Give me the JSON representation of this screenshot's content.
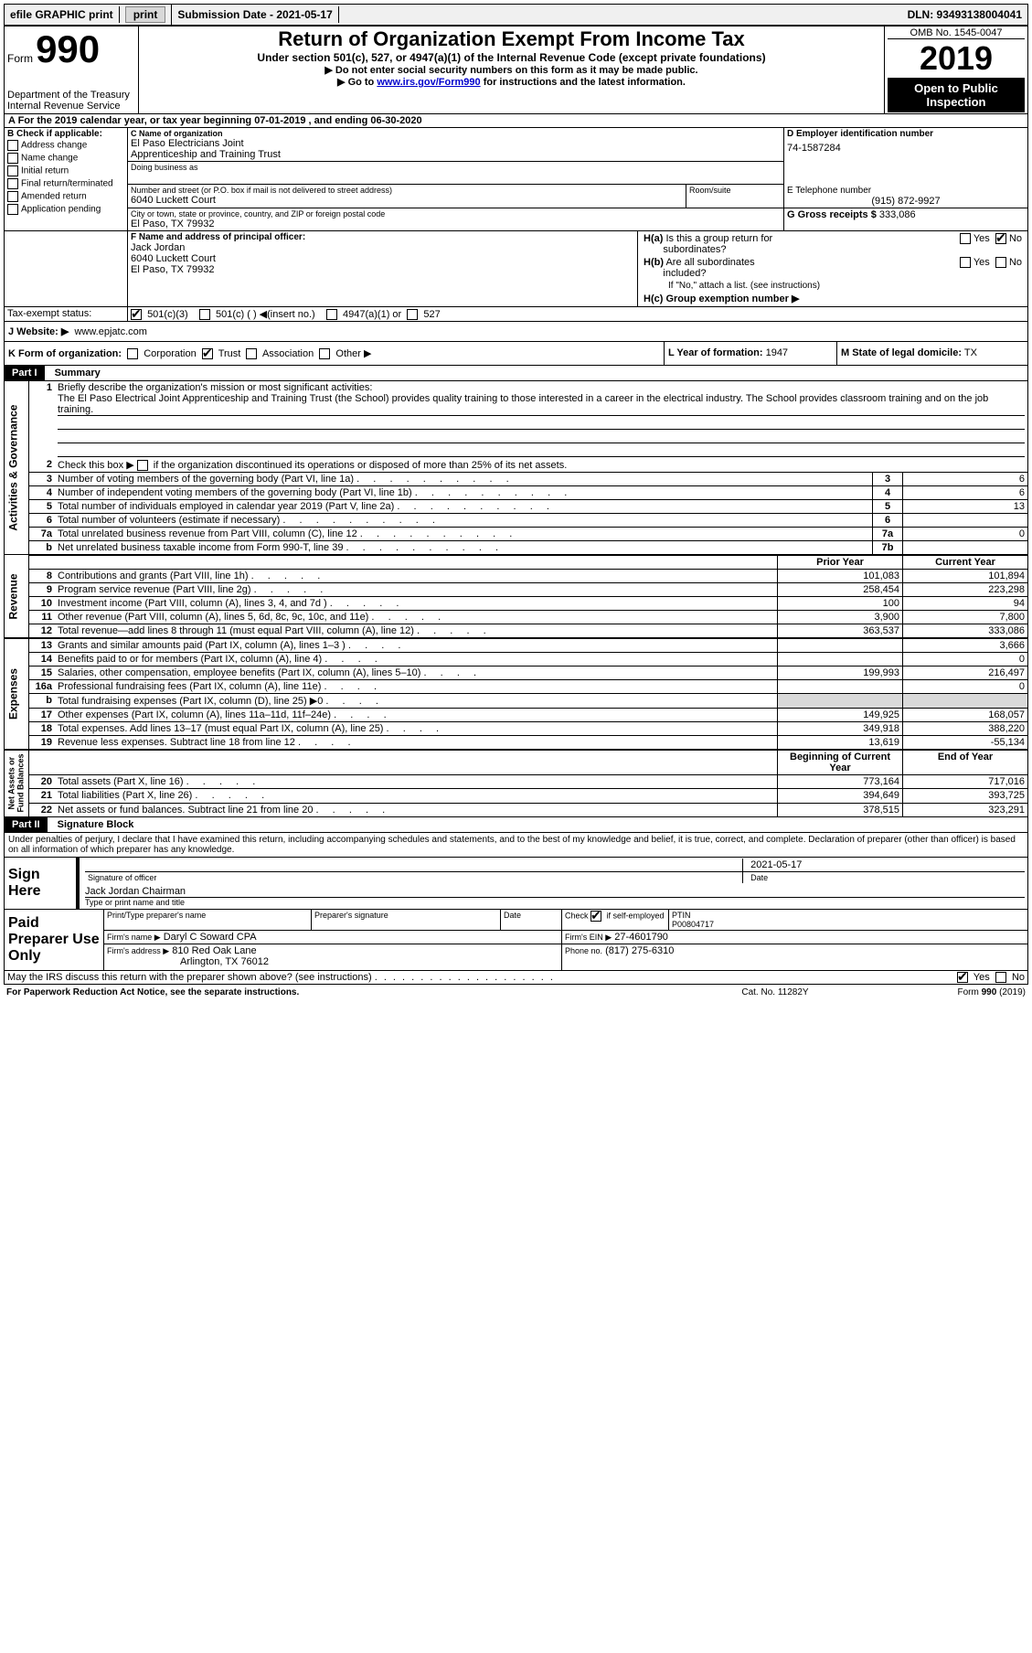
{
  "topbar": {
    "efile": "efile GRAPHIC print",
    "submission_label": "Submission Date - 2021-05-17",
    "dln": "DLN: 93493138004041"
  },
  "header": {
    "form_label": "Form",
    "form_number": "990",
    "dept": "Department of the Treasury\nInternal Revenue Service",
    "title": "Return of Organization Exempt From Income Tax",
    "subtitle": "Under section 501(c), 527, or 4947(a)(1) of the Internal Revenue Code (except private foundations)",
    "note1": "▶ Do not enter social security numbers on this form as it may be made public.",
    "note2_pre": "▶ Go to ",
    "note2_link": "www.irs.gov/Form990",
    "note2_post": " for instructions and the latest information.",
    "omb": "OMB No. 1545-0047",
    "year": "2019",
    "inspection": "Open to Public Inspection"
  },
  "section_a": {
    "line": "A For the 2019 calendar year, or tax year beginning 07-01-2019   , and ending 06-30-2020"
  },
  "b": {
    "label": "B Check if applicable:",
    "opts": [
      "Address change",
      "Name change",
      "Initial return",
      "Final return/terminated",
      "Amended return",
      "Application pending"
    ]
  },
  "c": {
    "name_label": "C Name of organization",
    "name": "El Paso Electricians Joint\nApprenticeship and Training Trust",
    "dba_label": "Doing business as",
    "addr_label": "Number and street (or P.O. box if mail is not delivered to street address)",
    "addr": "6040 Luckett Court",
    "room_label": "Room/suite",
    "city_label": "City or town, state or province, country, and ZIP or foreign postal code",
    "city": "El Paso, TX  79932"
  },
  "d": {
    "label": "D Employer identification number",
    "value": "74-1587284"
  },
  "e": {
    "label": "E Telephone number",
    "value": "(915) 872-9927"
  },
  "g": {
    "label": "G Gross receipts $",
    "value": "333,086"
  },
  "f": {
    "label": "F Name and address of principal officer:",
    "name": "Jack Jordan",
    "addr1": "6040 Luckett Court",
    "addr2": "El Paso, TX  79932"
  },
  "h": {
    "a_label": "H(a)  Is this a group return for subordinates?",
    "b_label": "H(b)  Are all subordinates included?",
    "b_note": "If \"No,\" attach a list. (see instructions)",
    "c_label": "H(c)  Group exemption number ▶",
    "yes": "Yes",
    "no": "No"
  },
  "i": {
    "label": "Tax-exempt status:",
    "o1": "501(c)(3)",
    "o2": "501(c) (  ) ◀(insert no.)",
    "o3": "4947(a)(1) or",
    "o4": "527"
  },
  "j": {
    "label": "J   Website: ▶",
    "value": "www.epjatc.com"
  },
  "k": {
    "label": "K Form of organization:",
    "o1": "Corporation",
    "o2": "Trust",
    "o3": "Association",
    "o4": "Other ▶"
  },
  "l": {
    "label": "L Year of formation:",
    "value": "1947"
  },
  "m": {
    "label": "M State of legal domicile:",
    "value": "TX"
  },
  "part1": {
    "header": "Part I",
    "title": "Summary",
    "q1": "Briefly describe the organization's mission or most significant activities:",
    "q1_text": "The El Paso Electrical Joint Apprenticeship and Training Trust (the School) provides quality training to those interested in a career in the electrical industry. The School provides classroom training and on the job training.",
    "q2": "Check this box ▶      if the organization discontinued its operations or disposed of more than 25% of its net assets.",
    "lines_gov": [
      {
        "n": "3",
        "d": "Number of voting members of the governing body (Part VI, line 1a)",
        "box": "3",
        "v": "6"
      },
      {
        "n": "4",
        "d": "Number of independent voting members of the governing body (Part VI, line 1b)",
        "box": "4",
        "v": "6"
      },
      {
        "n": "5",
        "d": "Total number of individuals employed in calendar year 2019 (Part V, line 2a)",
        "box": "5",
        "v": "13"
      },
      {
        "n": "6",
        "d": "Total number of volunteers (estimate if necessary)",
        "box": "6",
        "v": ""
      },
      {
        "n": "7a",
        "d": "Total unrelated business revenue from Part VIII, column (C), line 12",
        "box": "7a",
        "v": "0"
      },
      {
        "n": "b",
        "d": "Net unrelated business taxable income from Form 990-T, line 39",
        "box": "7b",
        "v": ""
      }
    ],
    "col_prior": "Prior Year",
    "col_current": "Current Year",
    "lines_rev": [
      {
        "n": "8",
        "d": "Contributions and grants (Part VIII, line 1h)",
        "p": "101,083",
        "c": "101,894"
      },
      {
        "n": "9",
        "d": "Program service revenue (Part VIII, line 2g)",
        "p": "258,454",
        "c": "223,298"
      },
      {
        "n": "10",
        "d": "Investment income (Part VIII, column (A), lines 3, 4, and 7d )",
        "p": "100",
        "c": "94"
      },
      {
        "n": "11",
        "d": "Other revenue (Part VIII, column (A), lines 5, 6d, 8c, 9c, 10c, and 11e)",
        "p": "3,900",
        "c": "7,800"
      },
      {
        "n": "12",
        "d": "Total revenue—add lines 8 through 11 (must equal Part VIII, column (A), line 12)",
        "p": "363,537",
        "c": "333,086"
      }
    ],
    "lines_exp": [
      {
        "n": "13",
        "d": "Grants and similar amounts paid (Part IX, column (A), lines 1–3 )",
        "p": "",
        "c": "3,666"
      },
      {
        "n": "14",
        "d": "Benefits paid to or for members (Part IX, column (A), line 4)",
        "p": "",
        "c": "0"
      },
      {
        "n": "15",
        "d": "Salaries, other compensation, employee benefits (Part IX, column (A), lines 5–10)",
        "p": "199,993",
        "c": "216,497"
      },
      {
        "n": "16a",
        "d": "Professional fundraising fees (Part IX, column (A), line 11e)",
        "p": "",
        "c": "0"
      },
      {
        "n": "b",
        "d": "Total fundraising expenses (Part IX, column (D), line 25) ▶0",
        "p": "shaded",
        "c": "shaded"
      },
      {
        "n": "17",
        "d": "Other expenses (Part IX, column (A), lines 11a–11d, 11f–24e)",
        "p": "149,925",
        "c": "168,057"
      },
      {
        "n": "18",
        "d": "Total expenses. Add lines 13–17 (must equal Part IX, column (A), line 25)",
        "p": "349,918",
        "c": "388,220"
      },
      {
        "n": "19",
        "d": "Revenue less expenses. Subtract line 18 from line 12",
        "p": "13,619",
        "c": "-55,134"
      }
    ],
    "col_begin": "Beginning of Current Year",
    "col_end": "End of Year",
    "lines_net": [
      {
        "n": "20",
        "d": "Total assets (Part X, line 16)",
        "p": "773,164",
        "c": "717,016"
      },
      {
        "n": "21",
        "d": "Total liabilities (Part X, line 26)",
        "p": "394,649",
        "c": "393,725"
      },
      {
        "n": "22",
        "d": "Net assets or fund balances. Subtract line 21 from line 20",
        "p": "378,515",
        "c": "323,291"
      }
    ]
  },
  "part2": {
    "header": "Part II",
    "title": "Signature Block",
    "decl": "Under penalties of perjury, I declare that I have examined this return, including accompanying schedules and statements, and to the best of my knowledge and belief, it is true, correct, and complete. Declaration of preparer (other than officer) is based on all information of which preparer has any knowledge.",
    "sign_here": "Sign Here",
    "sig_officer": "Signature of officer",
    "sig_date": "2021-05-17",
    "date_label": "Date",
    "sig_name": "Jack Jordan Chairman",
    "sig_type": "Type or print name and title",
    "paid": "Paid Preparer Use Only",
    "p_name_label": "Print/Type preparer's name",
    "p_sig_label": "Preparer's signature",
    "p_date_label": "Date",
    "p_check": "Check       if self-employed",
    "ptin_label": "PTIN",
    "ptin": "P00804717",
    "firm_name_label": "Firm's name    ▶",
    "firm_name": "Daryl C Soward CPA",
    "firm_ein_label": "Firm's EIN ▶",
    "firm_ein": "27-4601790",
    "firm_addr_label": "Firm's address ▶",
    "firm_addr1": "810 Red Oak Lane",
    "firm_addr2": "Arlington, TX  76012",
    "phone_label": "Phone no.",
    "phone": "(817) 275-6310",
    "discuss": "May the IRS discuss this return with the preparer shown above? (see instructions)"
  },
  "footer": {
    "left": "For Paperwork Reduction Act Notice, see the separate instructions.",
    "mid": "Cat. No. 11282Y",
    "right": "Form 990 (2019)"
  }
}
